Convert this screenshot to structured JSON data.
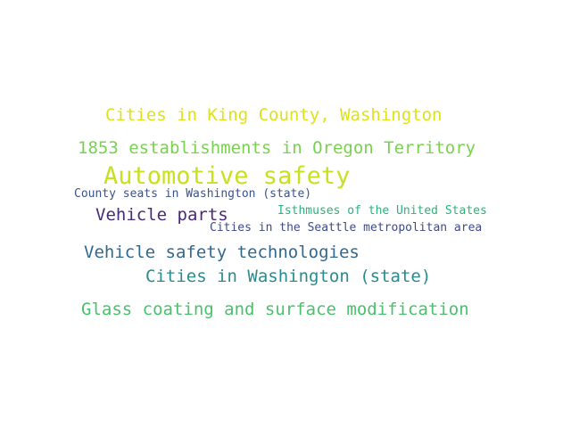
{
  "words": [
    {
      "text": "Cities in King County, Washington",
      "color": "#dde318"
    },
    {
      "text": "1853 establishments in Oregon Territory",
      "color": "#7ad151"
    },
    {
      "text": "Automotive safety",
      "color": "#c8e020"
    },
    {
      "text": "County seats in Washington (state)",
      "color": "#3b528b"
    },
    {
      "text": "Vehicle parts",
      "color": "#482878"
    },
    {
      "text": "Isthmuses of the United States",
      "color": "#2db27d"
    },
    {
      "text": "Cities in the Seattle metropolitan area",
      "color": "#3e4a89"
    },
    {
      "text": "Vehicle safety technologies",
      "color": "#31688e"
    },
    {
      "text": "Cities in Washington (state)",
      "color": "#2a8a8c"
    },
    {
      "text": "Glass coating and surface modification",
      "color": "#4ac16d"
    }
  ]
}
